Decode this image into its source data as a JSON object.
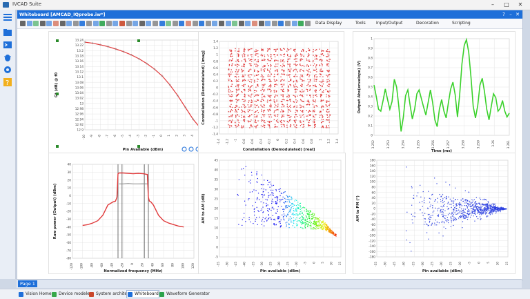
{
  "app": {
    "title": "IVCAD Suite",
    "window_title": "Whiteboard [AMCAD_IQprobe.iw*]"
  },
  "toolbar": {
    "menus": [
      "Data Display",
      "Tools",
      "Input/Output",
      "Decoration",
      "Scripting"
    ]
  },
  "colors": {
    "accent": "#1e6fd9",
    "trace_red": "#e0393a",
    "trace_green": "#3ad12b",
    "scatter_blue": "#2c40e0"
  },
  "pages": [
    "Page 1"
  ],
  "taskbar": {
    "tabs": [
      "Vision Home",
      "Device modeler",
      "System architect",
      "Whiteboard",
      "Waveform Generator"
    ],
    "active": "Whiteboard"
  },
  "chart_data": [
    {
      "type": "line",
      "xlabel": "Pin Available (dBm)",
      "ylabel": "Gt (dB) @ f0",
      "xlim": [
        -10,
        5
      ],
      "ylim": [
        12.9,
        13.24
      ],
      "x_ticks": [
        "-10",
        "-9",
        "-8",
        "-7",
        "-6",
        "-5",
        "-4",
        "-3",
        "-2",
        "-1",
        "0",
        "1",
        "2",
        "3",
        "4",
        "5"
      ],
      "y_ticks": [
        "13.24",
        "13.22",
        "13.2",
        "13.18",
        "13.16",
        "13.14",
        "13.12",
        "13.1",
        "13.08",
        "13.06",
        "13.04",
        "13.02",
        "13",
        "12.98",
        "12.96",
        "12.94",
        "12.92",
        "12.9"
      ],
      "series": [
        {
          "x": [
            -10,
            -9,
            -8,
            -7,
            -6,
            -5,
            -4,
            -3,
            -2,
            -1,
            0,
            1,
            2,
            3,
            4,
            5
          ],
          "y": [
            13.232,
            13.228,
            13.222,
            13.215,
            13.206,
            13.196,
            13.184,
            13.169,
            13.151,
            13.13,
            13.104,
            13.07,
            13.03,
            12.985,
            12.94,
            12.905
          ]
        }
      ]
    },
    {
      "type": "scatter",
      "xlabel": "Constellation (Demodulated) [real]",
      "ylabel": "Constellation (Demodulated) [imag]",
      "xlim": [
        -1.4,
        1.4
      ],
      "ylim": [
        -1.4,
        1.4
      ],
      "x_ticks": [
        "-1.4",
        "-1.2",
        "-1",
        "-0.8",
        "-0.6",
        "-0.4",
        "-0.2",
        "0",
        "0.2",
        "0.4",
        "0.6",
        "0.8",
        "1",
        "1.2",
        "1.4"
      ],
      "y_ticks": [
        "1.4",
        "1.2",
        "1",
        "0.8",
        "0.6",
        "0.4",
        "0.2",
        "0",
        "-0.2",
        "-0.4",
        "-0.6",
        "-0.8",
        "-1",
        "-1.2",
        "-1.4"
      ],
      "grid_levels": 16,
      "grid_span": [
        -1.15,
        1.15
      ]
    },
    {
      "type": "line",
      "xlabel": "Time (ms)",
      "ylabel": "Output Abs(envelope) (V)",
      "xlim": [
        3.2522,
        3.2612
      ],
      "ylim": [
        0,
        1
      ],
      "x_ticks": [
        "3.252",
        "3.253",
        "3.254",
        "3.255",
        "3.256",
        "3.257",
        "3.258",
        "3.259",
        "3.26",
        "3.261"
      ],
      "y_ticks": [
        "1",
        "0.9",
        "0.8",
        "0.7",
        "0.6",
        "0.5",
        "0.4",
        "0.3",
        "0.2",
        "0.1",
        "0"
      ],
      "series": [
        {
          "y": [
            0.52,
            0.4,
            0.27,
            0.25,
            0.36,
            0.48,
            0.37,
            0.27,
            0.35,
            0.58,
            0.5,
            0.3,
            0.04,
            0.19,
            0.41,
            0.47,
            0.31,
            0.17,
            0.27,
            0.43,
            0.47,
            0.38,
            0.29,
            0.21,
            0.34,
            0.47,
            0.34,
            0.16,
            0.09,
            0.27,
            0.37,
            0.25,
            0.18,
            0.34,
            0.48,
            0.55,
            0.42,
            0.19,
            0.42,
            0.74,
            0.93,
            0.99,
            0.86,
            0.6,
            0.3,
            0.18,
            0.31,
            0.52,
            0.59,
            0.45,
            0.27,
            0.16,
            0.3,
            0.43,
            0.39,
            0.25,
            0.28,
            0.36,
            0.25,
            0.19,
            0.23
          ]
        }
      ]
    },
    {
      "type": "line",
      "xlabel": "Normalized frequency (MHz)",
      "ylabel": "Raw power (Output) (dBm)",
      "xlim": [
        -120,
        120
      ],
      "ylim": [
        -80,
        40
      ],
      "x_ticks": [
        "-120",
        "-100",
        "-80",
        "-60",
        "-40",
        "-20",
        "0",
        "20",
        "40",
        "60",
        "80",
        "100",
        "120"
      ],
      "y_ticks": [
        "40",
        "30",
        "20",
        "10",
        "0",
        "-10",
        "-20",
        "-30",
        "-40",
        "-50",
        "-60",
        "-70",
        "-80"
      ],
      "series": [
        {
          "name": "red",
          "x": [
            -100,
            -90,
            -80,
            -70,
            -60,
            -50,
            -40,
            -35,
            -32,
            -30,
            -28,
            -20,
            -10,
            0,
            10,
            20,
            28,
            30,
            32,
            35,
            40,
            50,
            60,
            70,
            80,
            90,
            100
          ],
          "y": [
            -38,
            -37,
            -35,
            -32,
            -25,
            -12,
            -8,
            -7,
            -2,
            28,
            29,
            29,
            28.5,
            28,
            28.5,
            28,
            27,
            -2,
            -7,
            -8,
            -12,
            -25,
            -32,
            -35,
            -37,
            -39,
            -40
          ]
        },
        {
          "name": "gray",
          "x": [
            -28,
            -20,
            -10,
            0,
            10,
            20,
            28
          ],
          "y": [
            15,
            15,
            15.5,
            15,
            15,
            15.2,
            15
          ]
        }
      ]
    },
    {
      "type": "scatter",
      "xlabel": "Pin available (dBm)",
      "ylabel": "AM to AM (dB)",
      "xlim": [
        -55,
        15
      ],
      "ylim": [
        -5,
        45
      ],
      "x_ticks": [
        "-55",
        "-50",
        "-45",
        "-40",
        "-35",
        "-30",
        "-25",
        "-20",
        "-15",
        "-10",
        "-5",
        "0",
        "5",
        "10",
        "15"
      ],
      "y_ticks": [
        "45",
        "40",
        "35",
        "30",
        "25",
        "20",
        "15",
        "10",
        "5",
        "0",
        "-5"
      ]
    },
    {
      "type": "scatter",
      "xlabel": "Pin available (dBm)",
      "ylabel": "AM to PM (°)",
      "xlim": [
        -55,
        15
      ],
      "ylim": [
        -180,
        180
      ],
      "x_ticks": [
        "-55",
        "-50",
        "-45",
        "-40",
        "-35",
        "-30",
        "-25",
        "-20",
        "-15",
        "-10",
        "-5",
        "0",
        "5",
        "10",
        "15"
      ],
      "y_ticks": [
        "180",
        "160",
        "140",
        "120",
        "100",
        "80",
        "60",
        "40",
        "20",
        "0",
        "-20",
        "-40",
        "-60",
        "-80",
        "-100",
        "-120",
        "-140",
        "-160",
        "-180"
      ]
    }
  ]
}
